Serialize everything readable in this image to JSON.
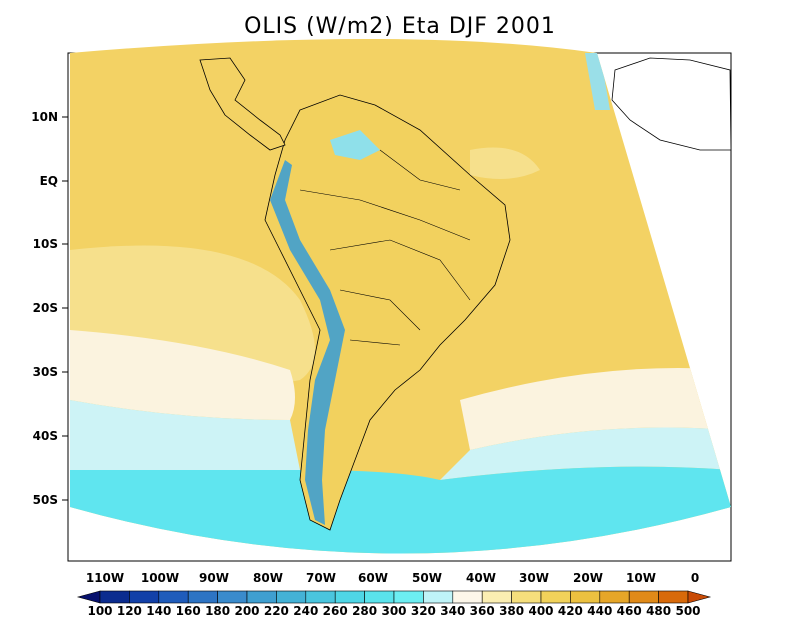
{
  "title": "OLIS (W/m2) Eta DJF 2001",
  "lat_labels": [
    "10N",
    "EQ",
    "10S",
    "20S",
    "30S",
    "40S",
    "50S"
  ],
  "lon_labels": [
    "110W",
    "100W",
    "90W",
    "80W",
    "70W",
    "60W",
    "50W",
    "40W",
    "30W",
    "20W",
    "10W",
    "0"
  ],
  "colorbar": {
    "levels": [
      "100",
      "120",
      "140",
      "160",
      "180",
      "200",
      "220",
      "240",
      "260",
      "280",
      "300",
      "320",
      "340",
      "360",
      "380",
      "400",
      "420",
      "440",
      "460",
      "480",
      "500"
    ],
    "colors": [
      "#08126e",
      "#0b2c8f",
      "#1240a8",
      "#1f5cbb",
      "#2d74c4",
      "#3a8bcc",
      "#3f9fd0",
      "#44b2d6",
      "#4ac5de",
      "#4fd6e6",
      "#5ae3ec",
      "#6ceef2",
      "#bff4f8",
      "#fdf7ea",
      "#fbeeb2",
      "#f6df7c",
      "#f1d25a",
      "#ecc140",
      "#e6a628",
      "#e08a18",
      "#d86a0a",
      "#c94b06"
    ]
  },
  "field_colors": {
    "ocean_warm": "#f3d264",
    "ocean_mid": "#f6e08c",
    "ocean_light": "#fbf3df",
    "ocean_pale": "#cdf3f6",
    "ocean_cold": "#5fe5ef",
    "andes": "#3f9fd0",
    "land": "#f2d15e"
  }
}
